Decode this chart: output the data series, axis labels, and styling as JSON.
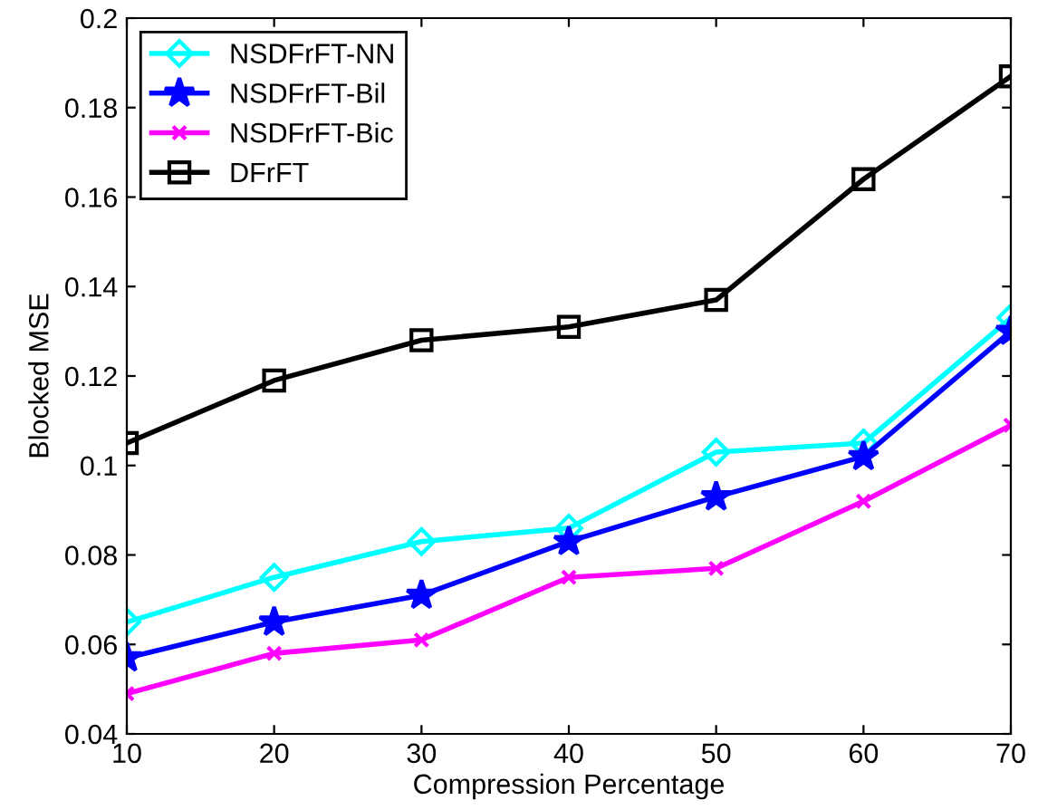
{
  "chart_data": {
    "type": "line",
    "xlabel": "Compression Percentage",
    "ylabel": "Blocked MSE",
    "x": [
      10,
      20,
      30,
      40,
      50,
      60,
      70
    ],
    "series": [
      {
        "name": "NSDFrFT-NN",
        "color": "#00ffff",
        "marker": "diamond",
        "values": [
          0.065,
          0.075,
          0.083,
          0.086,
          0.103,
          0.105,
          0.133
        ]
      },
      {
        "name": "NSDFrFT-Bil",
        "color": "#0000ff",
        "marker": "star",
        "values": [
          0.057,
          0.065,
          0.071,
          0.083,
          0.093,
          0.102,
          0.13
        ]
      },
      {
        "name": "NSDFrFT-Bic",
        "color": "#ff00ff",
        "marker": "cross",
        "values": [
          0.049,
          0.058,
          0.061,
          0.075,
          0.077,
          0.092,
          0.109
        ]
      },
      {
        "name": "DFrFT",
        "color": "#000000",
        "marker": "square",
        "values": [
          0.105,
          0.119,
          0.128,
          0.131,
          0.137,
          0.164,
          0.187
        ]
      }
    ],
    "xlim": [
      10,
      70
    ],
    "xticks": [
      10,
      20,
      30,
      40,
      50,
      60,
      70
    ],
    "ylim": [
      0.04,
      0.2
    ],
    "yticks": [
      0.04,
      0.06,
      0.08,
      {
        "value": 0.1,
        "label": "0.1"
      },
      0.12,
      0.14,
      0.16,
      0.18,
      {
        "value": 0.2,
        "label": "0.2"
      }
    ],
    "grid": false,
    "legend": "top left",
    "line_style": "solid"
  }
}
